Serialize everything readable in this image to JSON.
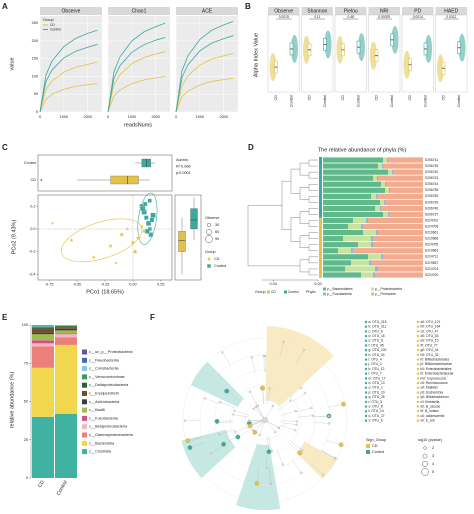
{
  "panels": [
    "A",
    "B",
    "C",
    "D",
    "E",
    "F"
  ],
  "chart_data": [
    {
      "type": "line",
      "xlabel": "readsNums",
      "ylabel": "value",
      "legend_title": "Group",
      "x": [
        0,
        250,
        500,
        1000,
        1500,
        2000,
        2400
      ],
      "xlim": [
        0,
        2600
      ],
      "xticks": [
        0,
        1000,
        2000
      ],
      "ylim": [
        0,
        270
      ],
      "yticks": [
        0,
        50,
        100,
        150,
        200,
        250
      ],
      "grid": true,
      "facets": [
        {
          "title": "Observe",
          "series": [
            {
              "name": "CD",
              "color": "#e3c24a",
              "values": [
                0,
                36,
                50,
                64,
                72,
                77,
                80
              ]
            },
            {
              "name": "CD",
              "color": "#e3c24a",
              "values": [
                0,
                63,
                87,
                112,
                126,
                134,
                140
              ]
            },
            {
              "name": "Control",
              "color": "#3fa89c",
              "values": [
                0,
                86,
                118,
                152,
                171,
                182,
                190
              ]
            },
            {
              "name": "Control",
              "color": "#3fa89c",
              "values": [
                0,
                104,
                143,
                184,
                207,
                221,
                230
              ]
            }
          ]
        },
        {
          "title": "Chao1",
          "series": [
            {
              "name": "CD",
              "color": "#e3c24a",
              "values": [
                0,
                45,
                62,
                80,
                90,
                96,
                100
              ]
            },
            {
              "name": "CD",
              "color": "#e3c24a",
              "values": [
                0,
                77,
                105,
                136,
                153,
                163,
                170
              ]
            },
            {
              "name": "Control",
              "color": "#3fa89c",
              "values": [
                0,
                95,
                130,
                168,
                189,
                202,
                210
              ]
            },
            {
              "name": "Control",
              "color": "#3fa89c",
              "values": [
                0,
                113,
                155,
                200,
                225,
                240,
                250
              ]
            }
          ]
        },
        {
          "title": "ACE",
          "series": [
            {
              "name": "CD",
              "color": "#e3c24a",
              "values": [
                0,
                43,
                59,
                76,
                86,
                91,
                95
              ]
            },
            {
              "name": "CD",
              "color": "#e3c24a",
              "values": [
                0,
                74,
                102,
                132,
                149,
                158,
                165
              ]
            },
            {
              "name": "Control",
              "color": "#3fa89c",
              "values": [
                0,
                97,
                133,
                172,
                194,
                206,
                215
              ]
            },
            {
              "name": "Control",
              "color": "#3fa89c",
              "values": [
                0,
                115,
                158,
                204,
                230,
                245,
                255
              ]
            }
          ]
        }
      ]
    },
    {
      "type": "box",
      "ylabel": "Alpha Index Value",
      "categories": [
        "CD",
        "Control"
      ],
      "colors": [
        "#e3c24a",
        "#3fa89c"
      ],
      "facets": [
        {
          "title": "Observe",
          "p": "0.0019",
          "ylim": [
            0,
            300
          ],
          "values": [
            110,
            190
          ]
        },
        {
          "title": "Shannon",
          "p": "0.11",
          "ylim": [
            0,
            5
          ],
          "values": [
            3.1,
            3.5
          ]
        },
        {
          "title": "Pielou",
          "p": "0.48",
          "ylim": [
            0,
            1
          ],
          "values": [
            0.62,
            0.66
          ]
        },
        {
          "title": "NRI",
          "p": "0.00029",
          "ylim": [
            -2,
            4
          ],
          "values": [
            1.2,
            2.6
          ]
        },
        {
          "title": "PD",
          "p": "0.0014",
          "ylim": [
            0,
            30
          ],
          "values": [
            12,
            19
          ]
        },
        {
          "title": "HAED",
          "p": "0.0012",
          "ylim": [
            0,
            2
          ],
          "values": [
            0.7,
            1.3
          ]
        }
      ]
    },
    {
      "type": "scatter",
      "xlabel": "PCo1 (18.65%)",
      "ylabel": "PCo2 (9.43%)",
      "annotations": [
        "Adonis:",
        "R²:0.086",
        "p:0.0001"
      ],
      "xlim": [
        -0.85,
        0.35
      ],
      "xticks": [
        -0.75,
        {
          "value": -0.5,
          "label": "-0.50"
        },
        -0.25,
        {
          "value": 0,
          "label": "0.00"
        },
        0.25
      ],
      "ylim": [
        -0.45,
        0.3
      ],
      "yticks": [
        -0.4,
        -0.2,
        {
          "value": 0,
          "label": "0.0"
        },
        0.2
      ],
      "size_title": "Observe",
      "size_values": [
        30,
        60,
        90
      ],
      "legend_title": "Group",
      "series": [
        {
          "name": "CD",
          "color": "#e3c24a",
          "x": [
            -0.72,
            -0.55,
            -0.35,
            -0.2,
            -0.1,
            -0.05,
            0.0,
            0.05,
            0.08,
            -0.15,
            0.02,
            0.1
          ],
          "values": [
            0.05,
            -0.1,
            -0.25,
            -0.15,
            -0.05,
            0.0,
            -0.12,
            -0.08,
            0.02,
            -0.3,
            -0.2,
            -0.02
          ],
          "sizes": [
            30,
            45,
            40,
            50,
            60,
            35,
            55,
            70,
            40,
            30,
            65,
            50
          ],
          "xbox": {
            "min": -0.5,
            "q1": -0.2,
            "median": -0.05,
            "q3": 0.05,
            "max": 0.15
          },
          "ybox": {
            "min": -0.4,
            "q1": -0.2,
            "median": -0.1,
            "q3": -0.02,
            "max": 0.1
          }
        },
        {
          "name": "Control",
          "color": "#3fa89c",
          "x": [
            0.08,
            0.1,
            0.12,
            0.14,
            0.15,
            0.16,
            0.18,
            0.11,
            0.13,
            0.17,
            0.09,
            0.15
          ],
          "values": [
            0.2,
            0.15,
            0.1,
            0.05,
            0.0,
            -0.05,
            0.12,
            0.22,
            -0.02,
            0.08,
            0.18,
            0.25
          ],
          "sizes": [
            80,
            90,
            70,
            85,
            60,
            75,
            90,
            65,
            80,
            70,
            85,
            60
          ],
          "xbox": {
            "min": 0.02,
            "q1": 0.08,
            "median": 0.12,
            "q3": 0.16,
            "max": 0.2
          },
          "ybox": {
            "min": -0.1,
            "q1": 0.0,
            "median": 0.08,
            "q3": 0.18,
            "max": 0.28
          }
        }
      ]
    },
    {
      "type": "hbar_stacked",
      "title": "The relative abundance of phyla (%)",
      "xlim": [
        0,
        100
      ],
      "tree_xlim": [
        0.05,
        0
      ],
      "tree_xticks": [
        0.04,
        {
          "value": 0,
          "label": "0.00"
        }
      ],
      "group_title": "Group",
      "groups": [
        "CD",
        "Control"
      ],
      "group_colors": [
        "#e3c24a",
        "#3fa89c"
      ],
      "sample_groups": [
        1,
        1,
        1,
        1,
        1,
        1,
        1,
        1,
        1,
        1,
        0,
        0,
        0,
        0,
        0,
        0,
        0,
        0,
        0,
        0
      ],
      "legend_title": "Phyla",
      "categories": [
        "S206741",
        "S206745",
        "S206740",
        "S206743",
        "S206744",
        "S206738",
        "S206750",
        "S206739",
        "S206746",
        "S206737",
        "S224702",
        "S224708",
        "S219661",
        "S219658",
        "S224705",
        "S219663",
        "S224711",
        "S219657",
        "S224704",
        "S224700"
      ],
      "series": [
        {
          "name": "p__Bacteroidetes",
          "color": "#5fb98a",
          "values": [
            60,
            55,
            65,
            50,
            58,
            62,
            48,
            57,
            52,
            60,
            30,
            25,
            40,
            20,
            35,
            15,
            45,
            28,
            22,
            38
          ]
        },
        {
          "name": "p__Proteobacteria",
          "color": "#c8e3a0",
          "values": [
            4,
            4,
            4,
            4,
            4,
            4,
            5,
            4,
            5,
            5,
            13,
            13,
            13,
            28,
            13,
            13,
            13,
            18,
            30,
            12
          ]
        },
        {
          "name": "p__Fusobacteria",
          "color": "#8fb7d8",
          "values": [
            1,
            1,
            1,
            1,
            1,
            1,
            1,
            1,
            1,
            1,
            2,
            2,
            2,
            2,
            2,
            2,
            2,
            2,
            3,
            2
          ]
        },
        {
          "name": "p__Firmicutes",
          "color": "#f2ab8e",
          "values": [
            35,
            40,
            30,
            45,
            37,
            33,
            46,
            38,
            42,
            34,
            55,
            60,
            45,
            50,
            50,
            70,
            40,
            52,
            45,
            48
          ]
        }
      ]
    },
    {
      "type": "bar_stacked",
      "ylabel": "relative abundance (%)",
      "categories": [
        "CD",
        "Control"
      ],
      "ylim": [
        0,
        100
      ],
      "yticks": [
        0,
        25,
        50,
        75,
        100
      ],
      "series": [
        {
          "name": "c__un_p__Proteobacteria",
          "color": "#6a4fa3",
          "values": [
            0.2,
            0.1
          ]
        },
        {
          "name": "c__Flavobacteriia",
          "color": "#3b6fb6",
          "values": [
            0.3,
            0.1
          ]
        },
        {
          "name": "c__Coriobacteriia",
          "color": "#8cc3e8",
          "values": [
            0.5,
            0.3
          ]
        },
        {
          "name": "c__Verrucomicrobiae",
          "color": "#3a9a5c",
          "values": [
            1,
            0.5
          ]
        },
        {
          "name": "c__Deltaproteobacteria",
          "color": "#2f5e3a",
          "values": [
            1,
            0.5
          ]
        },
        {
          "name": "c__Erysipelotrichi",
          "color": "#7a4a2a",
          "values": [
            2,
            1
          ]
        },
        {
          "name": "c__Actinobacteria",
          "color": "#3d3d3d",
          "values": [
            1,
            1
          ]
        },
        {
          "name": "c__Bacilli",
          "color": "#9bbf4a",
          "values": [
            4,
            2
          ]
        },
        {
          "name": "c__Fusobacteriia",
          "color": "#d64f8a",
          "values": [
            2,
            0.5
          ]
        },
        {
          "name": "c__Betaproteobacteria",
          "color": "#f3b6c4",
          "values": [
            2,
            2
          ]
        },
        {
          "name": "c__Gammaproteobacteria",
          "color": "#e9807a",
          "values": [
            14,
            5
          ]
        },
        {
          "name": "c__Bacteroidia",
          "color": "#f1d64e",
          "values": [
            32,
            45
          ]
        },
        {
          "name": "c__Clostridia",
          "color": "#3fb2a2",
          "values": [
            40,
            42
          ]
        }
      ]
    }
  ],
  "cladogram": {
    "labels_left": [
      "a: OTU_215",
      "b: OTU_211",
      "c: OTU_9",
      "d: OTU_16",
      "e: OTU_5",
      "f: OTU_95",
      "g: OTU_100",
      "h: OTU_34",
      "i: OTU_4",
      "j: OTU_2",
      "k: OTU_12",
      "l: OTU_7",
      "m: OTU_17",
      "n: OTU_13",
      "o: OTU_1",
      "p: OTU_10",
      "q: OTU_25",
      "r: OTU_3",
      "s: OTU_8",
      "t: OTU_14",
      "u: OTU_27",
      "v: OTU_6"
    ],
    "labels_right": [
      "a0: OTU_121",
      "b0: OTU_164",
      "c0: OTU_47",
      "d0: OTU_53",
      "e0: OTU_15",
      "f0: OTU_77",
      "g0: OTU_44",
      "h0: OTU_32",
      "i0: Bifidobacteriales",
      "j0: Bifidobacteriaceae",
      "k0: Enterobacteriales",
      "l0: Enterobacteriaceae",
      "m0: Coprococcus",
      "n0: Ruminococcus",
      "o0: Dialister",
      "p0: Escherichia",
      "q0: Bifidobacterium",
      "r0: Klebsiella",
      "s0: B_caccae",
      "t0: B_ovatus",
      "u0: adolescentis",
      "v0: E_coli"
    ],
    "sign_title": "Sign_Group",
    "sign_groups": [
      "CD",
      "Control"
    ],
    "sign_colors": [
      "#e3c24a",
      "#3fa89c"
    ],
    "size_title": "log10 (pvalue)",
    "size_values": [
      2,
      3,
      4,
      5
    ]
  }
}
